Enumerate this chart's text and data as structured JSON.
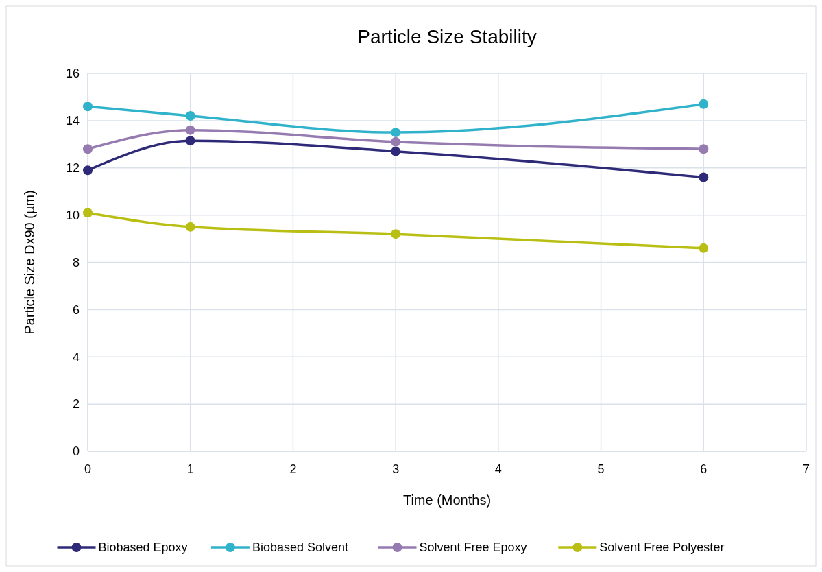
{
  "chart_data": {
    "type": "line",
    "title": "Particle Size Stability",
    "xlabel": "Time (Months)",
    "ylabel": "Particle Size Dx90  (µm)",
    "x": [
      0,
      1,
      3,
      6
    ],
    "series": [
      {
        "name": "Biobased Epoxy",
        "color": "#2e2a78",
        "values": [
          11.9,
          13.15,
          12.7,
          11.6
        ]
      },
      {
        "name": "Biobased Solvent",
        "color": "#31b2cb",
        "values": [
          14.6,
          14.2,
          13.5,
          14.7
        ]
      },
      {
        "name": "Solvent Free Epoxy",
        "color": "#967bb0",
        "values": [
          12.8,
          13.6,
          13.1,
          12.8
        ]
      },
      {
        "name": "Solvent Free Polyester",
        "color": "#b9bf12",
        "values": [
          10.1,
          9.5,
          9.2,
          8.6
        ]
      }
    ],
    "xlim": [
      0,
      7
    ],
    "xticks": [
      0,
      1,
      2,
      3,
      4,
      5,
      6,
      7
    ],
    "ylim": [
      0,
      16
    ],
    "yticks": [
      0,
      2,
      4,
      6,
      8,
      10,
      12,
      14,
      16
    ],
    "grid": true,
    "legend": "bottom",
    "marker": "circle",
    "line_style": "solid"
  }
}
